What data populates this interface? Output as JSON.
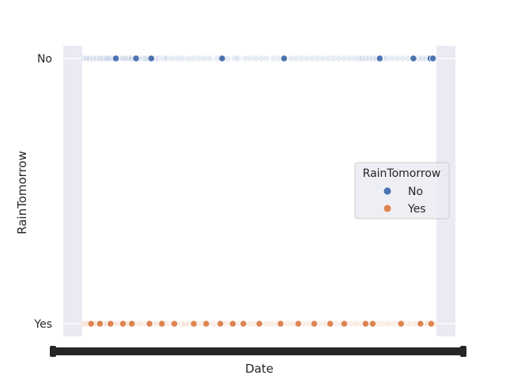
{
  "chart_data": {
    "type": "scatter",
    "xlabel": "Date",
    "ylabel": "RainTomorrow",
    "y_categories": [
      "No",
      "Yes"
    ],
    "x_tick_labels_note": "",
    "grid": true,
    "legend": {
      "title": "RainTomorrow",
      "placement": "center-right",
      "entries": [
        {
          "label": "No",
          "color": "#4c72b0"
        },
        {
          "label": "Yes",
          "color": "#dd8452"
        }
      ]
    },
    "series": [
      {
        "name": "No",
        "color": "#4c72b0",
        "x_rank_fraction": [
          0.005,
          0.012,
          0.02,
          0.03,
          0.04,
          0.05,
          0.057,
          0.066,
          0.07,
          0.075,
          0.083,
          0.09,
          0.098,
          0.105,
          0.115,
          0.12,
          0.128,
          0.135,
          0.14,
          0.148,
          0.16,
          0.172,
          0.18,
          0.188,
          0.196,
          0.205,
          0.215,
          0.23,
          0.24,
          0.255,
          0.27,
          0.283,
          0.3,
          0.315,
          0.33,
          0.345,
          0.36,
          0.38,
          0.39,
          0.41,
          0.43,
          0.44,
          0.46,
          0.475,
          0.49,
          0.505,
          0.52,
          0.54,
          0.555,
          0.57,
          0.59,
          0.605,
          0.62,
          0.635,
          0.65,
          0.665,
          0.68,
          0.695,
          0.71,
          0.725,
          0.74,
          0.755,
          0.77,
          0.782,
          0.79,
          0.8,
          0.81,
          0.82,
          0.83,
          0.84,
          0.85,
          0.86,
          0.875,
          0.89,
          0.905,
          0.92,
          0.935,
          0.95,
          0.96,
          0.97,
          0.98,
          0.99,
          0.995
        ],
        "solid": [
          0.095,
          0.152,
          0.195,
          0.395,
          0.57,
          0.84,
          0.935,
          0.983,
          0.99
        ]
      },
      {
        "name": "Yes",
        "color": "#dd8452",
        "x_rank_fraction": [
          0.003,
          0.01,
          0.018,
          0.025,
          0.032,
          0.04,
          0.05,
          0.06,
          0.07,
          0.08,
          0.09,
          0.1,
          0.11,
          0.12,
          0.13,
          0.14,
          0.15,
          0.165,
          0.18,
          0.19,
          0.2,
          0.212,
          0.225,
          0.24,
          0.255,
          0.265,
          0.28,
          0.29,
          0.3,
          0.312,
          0.325,
          0.34,
          0.355,
          0.37,
          0.385,
          0.4,
          0.415,
          0.43,
          0.445,
          0.46,
          0.475,
          0.49,
          0.505,
          0.52,
          0.535,
          0.55,
          0.565,
          0.58,
          0.595,
          0.61,
          0.625,
          0.64,
          0.655,
          0.67,
          0.685,
          0.7,
          0.715,
          0.73,
          0.745,
          0.76,
          0.775,
          0.79,
          0.805,
          0.82,
          0.835,
          0.85,
          0.865,
          0.88,
          0.895,
          0.91,
          0.925,
          0.94,
          0.955,
          0.965,
          0.975,
          0.985,
          0.995
        ],
        "solid": [
          0.025,
          0.05,
          0.08,
          0.115,
          0.14,
          0.19,
          0.225,
          0.26,
          0.315,
          0.35,
          0.39,
          0.425,
          0.455,
          0.5,
          0.56,
          0.61,
          0.655,
          0.7,
          0.74,
          0.8,
          0.82,
          0.9,
          0.955,
          0.985
        ]
      }
    ]
  }
}
